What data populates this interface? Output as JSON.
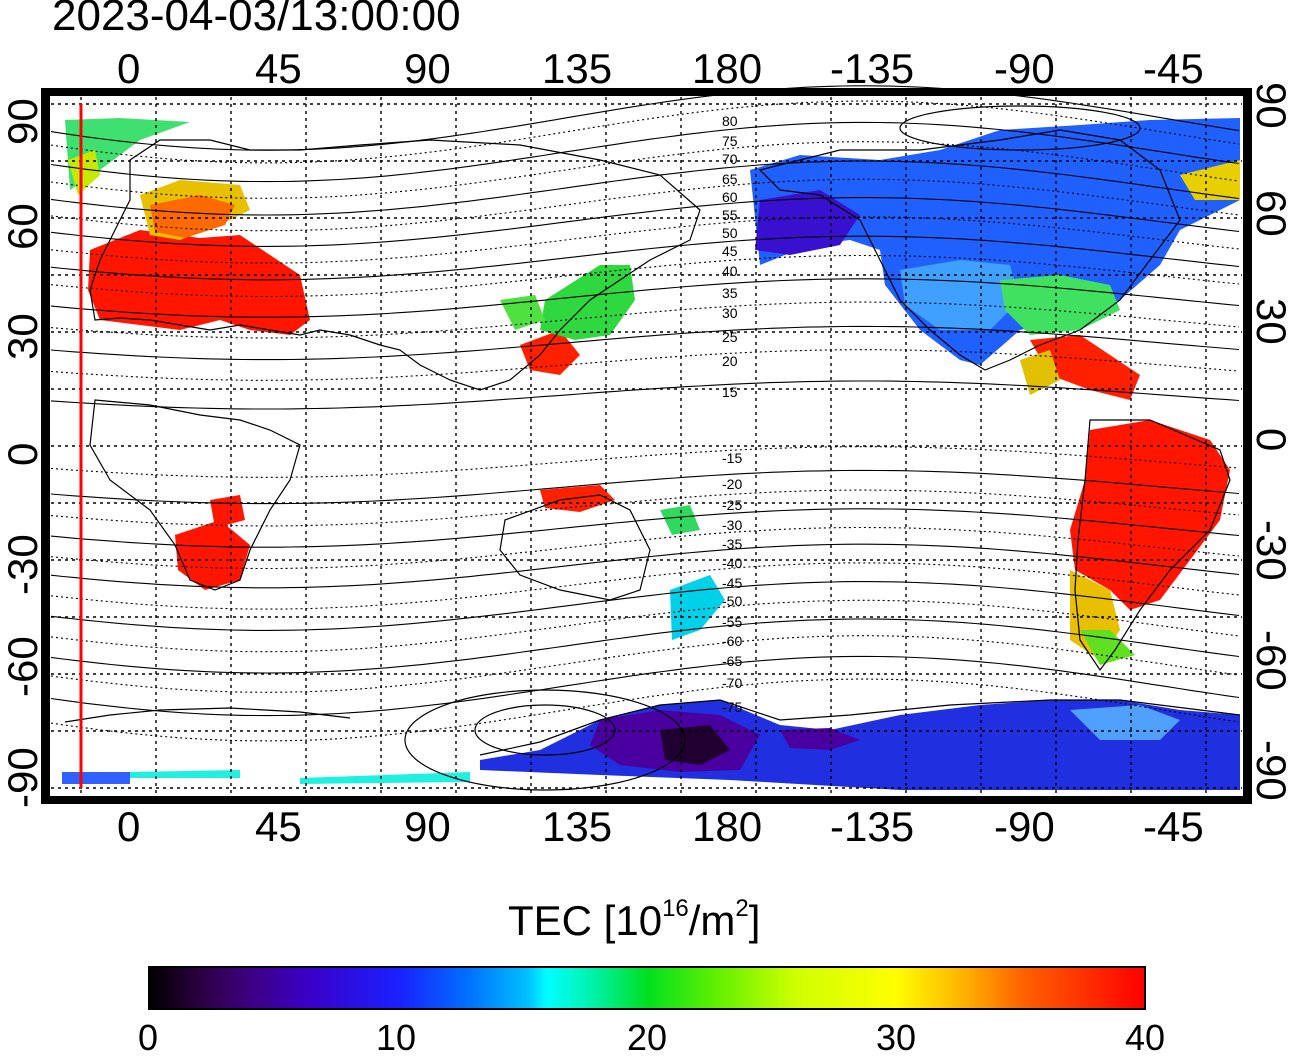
{
  "timestamp": "2023-04-03/13:00:00",
  "map": {
    "top_axis_ticks": [
      "0",
      "45",
      "90",
      "135",
      "180",
      "-135",
      "-90",
      "-45"
    ],
    "bottom_axis_ticks": [
      "0",
      "45",
      "90",
      "135",
      "180",
      "-135",
      "-90",
      "-45"
    ],
    "left_axis_ticks": [
      "90",
      "60",
      "30",
      "0",
      "-30",
      "-60",
      "-90"
    ],
    "right_axis_ticks": [
      "90",
      "60",
      "30",
      "0",
      "-30",
      "-60",
      "-90"
    ],
    "contour_labels": [
      "80",
      "75",
      "70",
      "65",
      "60",
      "55",
      "50",
      "45",
      "40",
      "35",
      "30",
      "25",
      "20",
      "15",
      "-15",
      "-20",
      "-25",
      "-30",
      "-35",
      "-40",
      "-45",
      "-50",
      "-55",
      "-60",
      "-65",
      "-70",
      "-75"
    ],
    "colors": {
      "frame": "#000000",
      "grid": "#000000",
      "red_meridian": "#ff0000"
    }
  },
  "colorbar": {
    "title_prefix": "TEC  [10",
    "title_exp1": "16",
    "title_mid": "/m",
    "title_exp2": "2",
    "title_suffix": "]",
    "labels": [
      "0",
      "10",
      "20",
      "30",
      "40"
    ],
    "range": [
      0,
      40
    ],
    "colors": [
      "#000000",
      "#3d0080",
      "#1a20ff",
      "#00ffff",
      "#00e020",
      "#ffff00",
      "#ff0000"
    ]
  }
}
